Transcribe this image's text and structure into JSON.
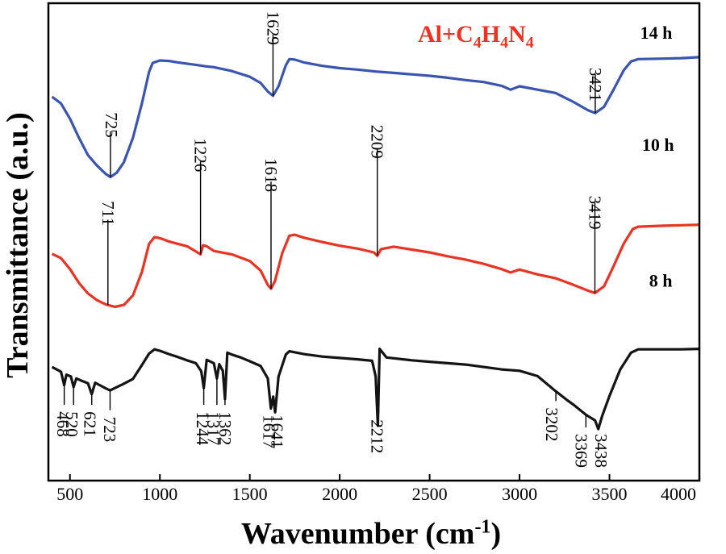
{
  "chart_data": {
    "type": "line",
    "title": "",
    "xlabel": "Wavenumber (cm",
    "xlabel_sup": "-1",
    "xlabel_close": ")",
    "ylabel": "Transmittance (a.u.)",
    "xlim": [
      380,
      4000
    ],
    "ylim": [
      0,
      1
    ],
    "x_ticks": [
      500,
      1000,
      1500,
      2000,
      2500,
      3000,
      3500,
      4000
    ],
    "annotation_sample": {
      "parts": [
        "Al+C",
        "4",
        "H",
        "4",
        "N",
        "4"
      ],
      "color": "#ee3124"
    },
    "series": [
      {
        "name": "14 h",
        "color": "#3a55b0",
        "label_x": 3760,
        "label_y": 0.926,
        "points": [
          [
            400,
            0.804
          ],
          [
            450,
            0.79
          ],
          [
            500,
            0.758
          ],
          [
            550,
            0.718
          ],
          [
            600,
            0.682
          ],
          [
            650,
            0.66
          ],
          [
            700,
            0.642
          ],
          [
            725,
            0.636
          ],
          [
            760,
            0.645
          ],
          [
            800,
            0.667
          ],
          [
            850,
            0.718
          ],
          [
            900,
            0.79
          ],
          [
            940,
            0.856
          ],
          [
            960,
            0.875
          ],
          [
            1000,
            0.88
          ],
          [
            1050,
            0.879
          ],
          [
            1100,
            0.876
          ],
          [
            1200,
            0.871
          ],
          [
            1250,
            0.868
          ],
          [
            1300,
            0.866
          ],
          [
            1400,
            0.858
          ],
          [
            1500,
            0.846
          ],
          [
            1560,
            0.833
          ],
          [
            1600,
            0.815
          ],
          [
            1629,
            0.806
          ],
          [
            1660,
            0.826
          ],
          [
            1700,
            0.87
          ],
          [
            1720,
            0.883
          ],
          [
            1750,
            0.882
          ],
          [
            1800,
            0.876
          ],
          [
            1900,
            0.869
          ],
          [
            2000,
            0.864
          ],
          [
            2100,
            0.861
          ],
          [
            2200,
            0.857
          ],
          [
            2300,
            0.854
          ],
          [
            2400,
            0.851
          ],
          [
            2500,
            0.848
          ],
          [
            2600,
            0.844
          ],
          [
            2700,
            0.839
          ],
          [
            2800,
            0.835
          ],
          [
            2900,
            0.827
          ],
          [
            2950,
            0.819
          ],
          [
            3000,
            0.826
          ],
          [
            3100,
            0.819
          ],
          [
            3200,
            0.812
          ],
          [
            3300,
            0.793
          ],
          [
            3380,
            0.776
          ],
          [
            3421,
            0.77
          ],
          [
            3470,
            0.783
          ],
          [
            3520,
            0.817
          ],
          [
            3580,
            0.86
          ],
          [
            3620,
            0.878
          ],
          [
            3660,
            0.883
          ],
          [
            3800,
            0.884
          ],
          [
            3900,
            0.885
          ],
          [
            4000,
            0.887
          ]
        ],
        "peaks": [
          {
            "wn": 725,
            "label": "725",
            "label_x": 730,
            "label_y": 0.745,
            "align": "middle"
          },
          {
            "wn": 1629,
            "label": "1629",
            "label_x": 1629,
            "label_y": 0.948,
            "align": "middle"
          },
          {
            "wn": 3421,
            "label": "3421",
            "label_x": 3421,
            "label_y": 0.865,
            "align": "start"
          }
        ]
      },
      {
        "name": "10 h",
        "color": "#e93323",
        "label_x": 3770,
        "label_y": 0.691,
        "points": [
          [
            400,
            0.475
          ],
          [
            450,
            0.466
          ],
          [
            500,
            0.443
          ],
          [
            550,
            0.414
          ],
          [
            600,
            0.392
          ],
          [
            650,
            0.378
          ],
          [
            700,
            0.369
          ],
          [
            750,
            0.364
          ],
          [
            800,
            0.368
          ],
          [
            850,
            0.388
          ],
          [
            900,
            0.437
          ],
          [
            940,
            0.496
          ],
          [
            970,
            0.51
          ],
          [
            1000,
            0.508
          ],
          [
            1050,
            0.501
          ],
          [
            1100,
            0.496
          ],
          [
            1150,
            0.491
          ],
          [
            1200,
            0.48
          ],
          [
            1226,
            0.474
          ],
          [
            1240,
            0.493
          ],
          [
            1260,
            0.491
          ],
          [
            1300,
            0.481
          ],
          [
            1400,
            0.474
          ],
          [
            1500,
            0.46
          ],
          [
            1560,
            0.44
          ],
          [
            1600,
            0.41
          ],
          [
            1618,
            0.402
          ],
          [
            1640,
            0.418
          ],
          [
            1680,
            0.476
          ],
          [
            1720,
            0.513
          ],
          [
            1750,
            0.515
          ],
          [
            1800,
            0.509
          ],
          [
            1900,
            0.5
          ],
          [
            2000,
            0.492
          ],
          [
            2100,
            0.486
          ],
          [
            2190,
            0.478
          ],
          [
            2209,
            0.471
          ],
          [
            2230,
            0.485
          ],
          [
            2300,
            0.49
          ],
          [
            2400,
            0.484
          ],
          [
            2500,
            0.478
          ],
          [
            2600,
            0.47
          ],
          [
            2700,
            0.463
          ],
          [
            2800,
            0.454
          ],
          [
            2900,
            0.443
          ],
          [
            2950,
            0.436
          ],
          [
            3000,
            0.442
          ],
          [
            3100,
            0.432
          ],
          [
            3200,
            0.424
          ],
          [
            3300,
            0.41
          ],
          [
            3380,
            0.398
          ],
          [
            3419,
            0.393
          ],
          [
            3470,
            0.407
          ],
          [
            3520,
            0.447
          ],
          [
            3580,
            0.497
          ],
          [
            3630,
            0.527
          ],
          [
            3660,
            0.532
          ],
          [
            3800,
            0.534
          ],
          [
            3900,
            0.535
          ],
          [
            4000,
            0.536
          ]
        ],
        "peaks": [
          {
            "wn": 711,
            "label": "711",
            "label_x": 711,
            "label_y": 0.56,
            "align": "middle"
          },
          {
            "wn": 1226,
            "label": "1226",
            "label_x": 1226,
            "label_y": 0.682,
            "align": "middle"
          },
          {
            "wn": 1618,
            "label": "1618",
            "label_x": 1618,
            "label_y": 0.64,
            "align": "middle"
          },
          {
            "wn": 2209,
            "label": "2209",
            "label_x": 2209,
            "label_y": 0.71,
            "align": "middle"
          },
          {
            "wn": 3419,
            "label": "3419",
            "label_x": 3419,
            "label_y": 0.597,
            "align": "start"
          }
        ]
      },
      {
        "name": "8 h",
        "color": "#141414",
        "label_x": 3785,
        "label_y": 0.406,
        "points": [
          [
            400,
            0.238
          ],
          [
            450,
            0.228
          ],
          [
            468,
            0.2
          ],
          [
            480,
            0.222
          ],
          [
            505,
            0.218
          ],
          [
            520,
            0.196
          ],
          [
            535,
            0.214
          ],
          [
            560,
            0.21
          ],
          [
            600,
            0.204
          ],
          [
            621,
            0.181
          ],
          [
            640,
            0.205
          ],
          [
            680,
            0.197
          ],
          [
            700,
            0.193
          ],
          [
            723,
            0.189
          ],
          [
            750,
            0.194
          ],
          [
            800,
            0.203
          ],
          [
            850,
            0.213
          ],
          [
            900,
            0.242
          ],
          [
            940,
            0.266
          ],
          [
            970,
            0.275
          ],
          [
            1000,
            0.272
          ],
          [
            1050,
            0.265
          ],
          [
            1100,
            0.259
          ],
          [
            1150,
            0.252
          ],
          [
            1200,
            0.246
          ],
          [
            1230,
            0.229
          ],
          [
            1244,
            0.194
          ],
          [
            1260,
            0.253
          ],
          [
            1300,
            0.246
          ],
          [
            1317,
            0.214
          ],
          [
            1330,
            0.244
          ],
          [
            1350,
            0.23
          ],
          [
            1362,
            0.171
          ],
          [
            1375,
            0.268
          ],
          [
            1400,
            0.264
          ],
          [
            1450,
            0.258
          ],
          [
            1500,
            0.25
          ],
          [
            1560,
            0.24
          ],
          [
            1600,
            0.214
          ],
          [
            1617,
            0.151
          ],
          [
            1630,
            0.176
          ],
          [
            1641,
            0.143
          ],
          [
            1660,
            0.218
          ],
          [
            1700,
            0.264
          ],
          [
            1720,
            0.271
          ],
          [
            1800,
            0.265
          ],
          [
            1900,
            0.26
          ],
          [
            2000,
            0.257
          ],
          [
            2100,
            0.254
          ],
          [
            2180,
            0.251
          ],
          [
            2200,
            0.218
          ],
          [
            2212,
            0.115
          ],
          [
            2222,
            0.276
          ],
          [
            2260,
            0.258
          ],
          [
            2400,
            0.252
          ],
          [
            2500,
            0.249
          ],
          [
            2600,
            0.246
          ],
          [
            2700,
            0.243
          ],
          [
            2800,
            0.238
          ],
          [
            2900,
            0.233
          ],
          [
            3000,
            0.23
          ],
          [
            3100,
            0.219
          ],
          [
            3202,
            0.187
          ],
          [
            3260,
            0.17
          ],
          [
            3300,
            0.159
          ],
          [
            3369,
            0.138
          ],
          [
            3420,
            0.126
          ],
          [
            3438,
            0.108
          ],
          [
            3460,
            0.136
          ],
          [
            3500,
            0.177
          ],
          [
            3560,
            0.233
          ],
          [
            3620,
            0.268
          ],
          [
            3660,
            0.275
          ],
          [
            3800,
            0.275
          ],
          [
            3900,
            0.275
          ],
          [
            4000,
            0.276
          ]
        ],
        "peaks": [
          {
            "wn": 468,
            "label": "468",
            "label_x": 461,
            "label_y": 0.145,
            "align": "start"
          },
          {
            "wn": 520,
            "label": "520",
            "label_x": 510,
            "label_y": 0.145,
            "align": "start"
          },
          {
            "wn": 621,
            "label": "621",
            "label_x": 612,
            "label_y": 0.145,
            "align": "start"
          },
          {
            "wn": 723,
            "label": "723",
            "label_x": 722,
            "label_y": 0.134,
            "align": "start"
          },
          {
            "wn": 1244,
            "label": "1244",
            "label_x": 1236,
            "label_y": 0.145,
            "align": "start"
          },
          {
            "wn": 1317,
            "label": "1317",
            "label_x": 1298,
            "label_y": 0.145,
            "align": "start"
          },
          {
            "wn": 1362,
            "label": "1362",
            "label_x": 1362,
            "label_y": 0.145,
            "align": "start"
          },
          {
            "wn": 1617,
            "label": "1617",
            "label_x": 1606,
            "label_y": 0.138,
            "align": "start"
          },
          {
            "wn": 1641,
            "label": "1641",
            "label_x": 1652,
            "label_y": 0.138,
            "align": "start"
          },
          {
            "wn": 2212,
            "label": "2212",
            "label_x": 2209,
            "label_y": 0.128,
            "align": "start"
          },
          {
            "wn": 3202,
            "label": "3202",
            "label_x": 3178,
            "label_y": 0.153,
            "align": "start"
          },
          {
            "wn": 3369,
            "label": "3369",
            "label_x": 3342,
            "label_y": 0.098,
            "align": "start"
          },
          {
            "wn": 3438,
            "label": "3438",
            "label_x": 3452,
            "label_y": 0.098,
            "align": "start"
          }
        ]
      }
    ]
  }
}
